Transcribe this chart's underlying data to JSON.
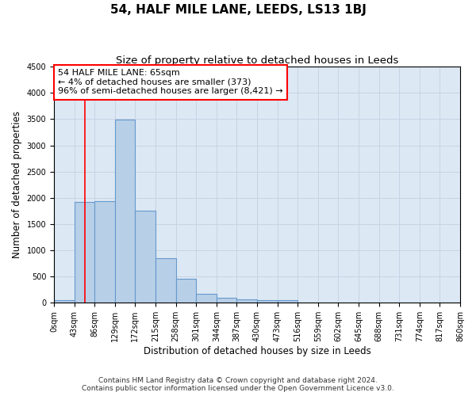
{
  "title": "54, HALF MILE LANE, LEEDS, LS13 1BJ",
  "subtitle": "Size of property relative to detached houses in Leeds",
  "xlabel": "Distribution of detached houses by size in Leeds",
  "ylabel": "Number of detached properties",
  "bar_values": [
    50,
    1920,
    1930,
    3490,
    1760,
    850,
    460,
    175,
    100,
    65,
    50,
    50,
    0,
    0,
    0,
    0,
    0,
    0,
    0,
    0
  ],
  "bin_edges": [
    0,
    43,
    86,
    129,
    172,
    215,
    258,
    301,
    344,
    387,
    430,
    473,
    516,
    559,
    602,
    645,
    688,
    731,
    774,
    817,
    860
  ],
  "bar_color": "#b8cfe8",
  "bar_edge_color": "#6699cc",
  "property_line_x": 65,
  "property_line_color": "red",
  "annotation_line1": "54 HALF MILE LANE: 65sqm",
  "annotation_line2": "← 4% of detached houses are smaller (373)",
  "annotation_line3": "96% of semi-detached houses are larger (8,421) →",
  "annotation_box_edgecolor": "red",
  "ylim": [
    0,
    4500
  ],
  "yticks": [
    0,
    500,
    1000,
    1500,
    2000,
    2500,
    3000,
    3500,
    4000,
    4500
  ],
  "xtick_labels": [
    "0sqm",
    "43sqm",
    "86sqm",
    "129sqm",
    "172sqm",
    "215sqm",
    "258sqm",
    "301sqm",
    "344sqm",
    "387sqm",
    "430sqm",
    "473sqm",
    "516sqm",
    "559sqm",
    "602sqm",
    "645sqm",
    "688sqm",
    "731sqm",
    "774sqm",
    "817sqm",
    "860sqm"
  ],
  "grid_color": "#c8d4e4",
  "background_color": "#dce8f4",
  "footer_line1": "Contains HM Land Registry data © Crown copyright and database right 2024.",
  "footer_line2": "Contains public sector information licensed under the Open Government Licence v3.0.",
  "title_fontsize": 11,
  "subtitle_fontsize": 9.5,
  "axis_label_fontsize": 8.5,
  "tick_fontsize": 7,
  "annotation_fontsize": 8,
  "footer_fontsize": 6.5
}
